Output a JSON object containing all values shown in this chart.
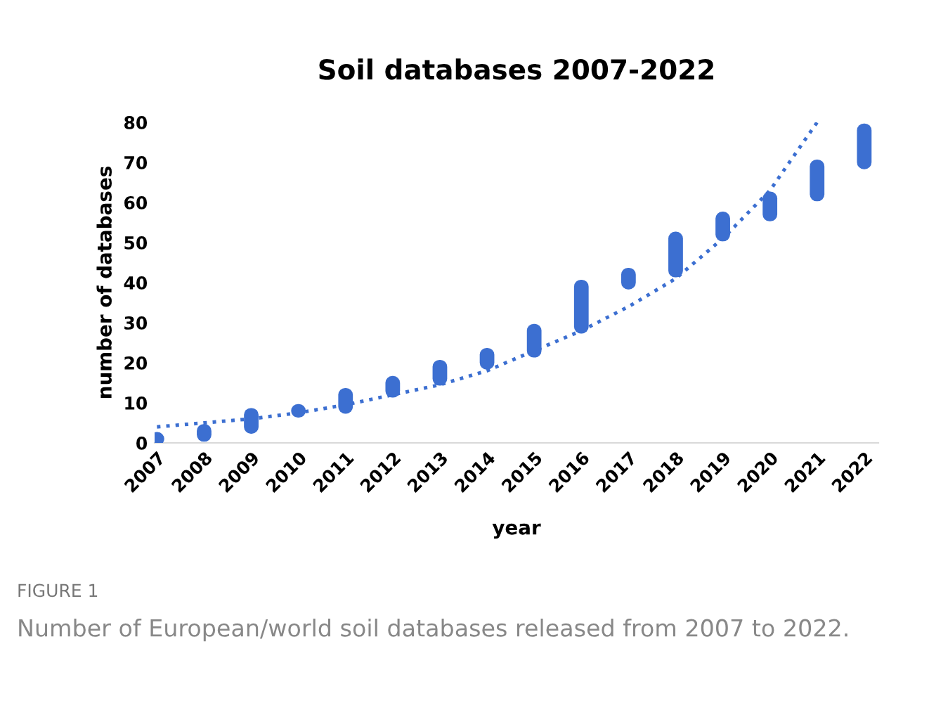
{
  "chart_data": {
    "type": "bar",
    "title": "Soil databases 2007-2022",
    "xlabel": "year",
    "ylabel": "number of databases",
    "categories": [
      "2007",
      "2008",
      "2009",
      "2010",
      "2011",
      "2012",
      "2013",
      "2014",
      "2015",
      "2016",
      "2017",
      "2018",
      "2019",
      "2020",
      "2021",
      "2022"
    ],
    "series": [
      {
        "color": "#3c6fd1",
        "base": [
          1,
          2,
          4,
          8,
          9,
          13,
          16,
          20,
          23,
          29,
          40,
          43,
          52,
          57,
          62,
          70
        ],
        "values": [
          0,
          1,
          3,
          0,
          3,
          2,
          3,
          2,
          5,
          10,
          2,
          8,
          4,
          4,
          7,
          8
        ]
      },
      {
        "type": "line",
        "color": "#3c6fd1",
        "line_style": "dotted",
        "values": [
          4,
          5,
          6,
          7.5,
          9.5,
          12,
          14.5,
          18,
          23,
          28,
          34,
          41,
          51,
          63,
          80,
          null
        ]
      }
    ],
    "ylim": [
      0,
      80
    ],
    "yticks": [
      0,
      10,
      20,
      30,
      40,
      50,
      60,
      70,
      80
    ],
    "annotations": [
      "FIGURE 1",
      "Number of European/world soil databases released from 2007 to 2022."
    ]
  }
}
